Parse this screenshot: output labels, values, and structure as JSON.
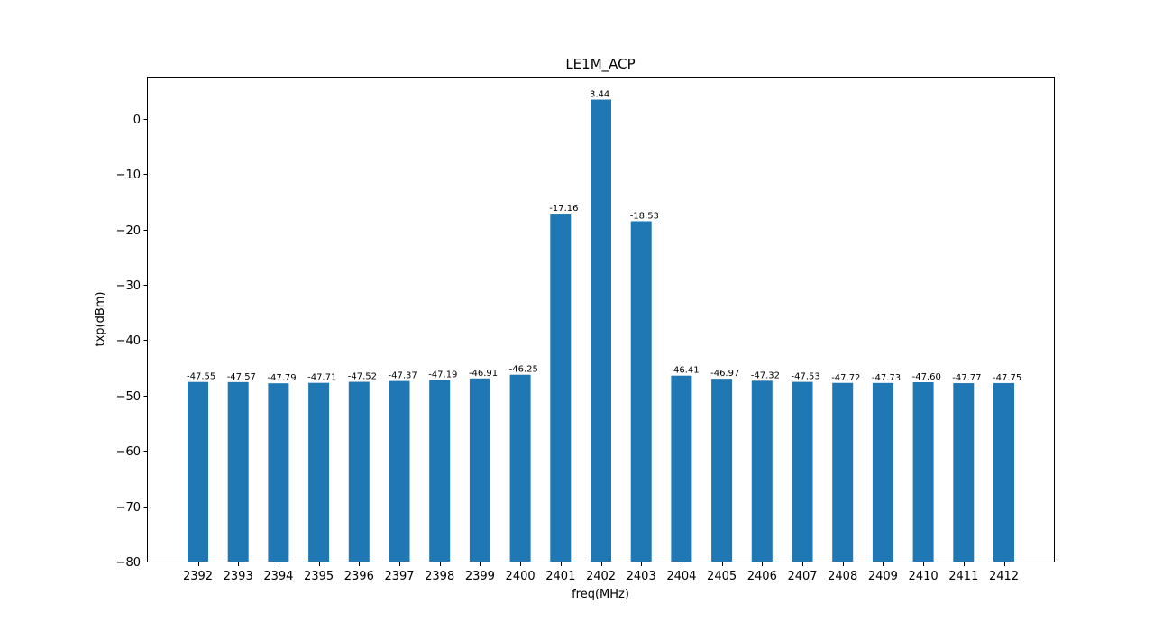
{
  "chart_data": {
    "type": "bar",
    "title": "LE1M_ACP",
    "xlabel": "freq(MHz)",
    "ylabel": "txp(dBm)",
    "ylim": [
      -80,
      7.6
    ],
    "yticks": [
      0,
      -10,
      -20,
      -30,
      -40,
      -50,
      -60,
      -70,
      -80
    ],
    "ytick_labels": [
      "0",
      "−10",
      "−20",
      "−30",
      "−40",
      "−50",
      "−60",
      "−70",
      "−80"
    ],
    "categories": [
      "2392",
      "2393",
      "2394",
      "2395",
      "2396",
      "2397",
      "2398",
      "2399",
      "2400",
      "2401",
      "2402",
      "2403",
      "2404",
      "2405",
      "2406",
      "2407",
      "2408",
      "2409",
      "2410",
      "2411",
      "2412"
    ],
    "values": [
      -47.55,
      -47.57,
      -47.79,
      -47.71,
      -47.52,
      -47.37,
      -47.19,
      -46.91,
      -46.25,
      -17.16,
      3.44,
      -18.53,
      -46.41,
      -46.97,
      -47.32,
      -47.53,
      -47.72,
      -47.73,
      -47.6,
      -47.77,
      -47.75
    ],
    "value_labels": [
      "-47.55",
      "-47.57",
      "-47.79",
      "-47.71",
      "-47.52",
      "-47.37",
      "-47.19",
      "-46.91",
      "-46.25",
      "-17.16",
      "3.44",
      "-18.53",
      "-46.41",
      "-46.97",
      "-47.32",
      "-47.53",
      "-47.72",
      "-47.73",
      "-47.60",
      "-47.77",
      "-47.75"
    ],
    "bar_color": "#1f77b4",
    "grid": false,
    "legend": "none"
  }
}
